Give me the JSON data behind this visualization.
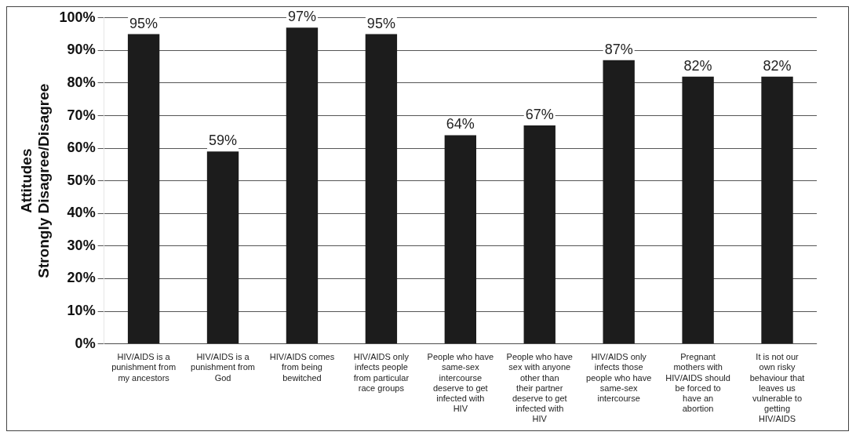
{
  "chart_data": {
    "type": "bar",
    "ylabel": "Attitudes\nStrongly Disagree/Disagree",
    "categories": [
      "HIV/AIDS is a punishment from my ancestors",
      "HIV/AIDS is a punishment from God",
      "HIV/AIDS comes from being bewitched",
      "HIV/AIDS only infects people from particular race groups",
      "People who have same-sex intercourse deserve to get infected with HIV",
      "People who have sex with anyone other than their partner deserve to get infected with HIV",
      "HIV/AIDS only infects those people who have same-sex intercourse",
      "Pregnant mothers with HIV/AIDS should be forced to have an abortion",
      "It is not our own risky behaviour that leaves us vulnerable to getting HIV/AIDS"
    ],
    "values": [
      95,
      59,
      97,
      95,
      64,
      67,
      87,
      82,
      82
    ],
    "value_labels": [
      "95%",
      "59%",
      "97%",
      "95%",
      "64%",
      "67%",
      "87%",
      "82%",
      "82%"
    ],
    "color": "#1c1c1c",
    "ylim": [
      0,
      100
    ],
    "yticks": [
      {
        "value": 0,
        "label": "0%"
      },
      {
        "value": 10,
        "label": "10%"
      },
      {
        "value": 20,
        "label": "20%"
      },
      {
        "value": 30,
        "label": "30%"
      },
      {
        "value": 40,
        "label": "40%"
      },
      {
        "value": 50,
        "label": "50%"
      },
      {
        "value": 60,
        "label": "60%"
      },
      {
        "value": 70,
        "label": "70%"
      },
      {
        "value": 80,
        "label": "80%"
      },
      {
        "value": 90,
        "label": "90%"
      },
      {
        "value": 100,
        "label": "100%"
      }
    ],
    "grid": "y",
    "legend": false
  }
}
